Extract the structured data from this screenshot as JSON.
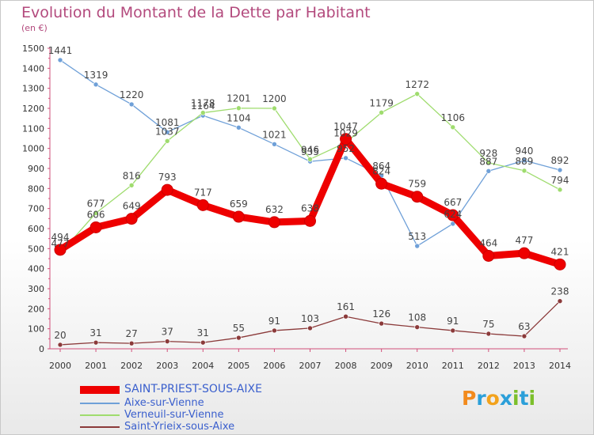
{
  "title": "Evolution du Montant de la Dette par Habitant",
  "unit": "(en €)",
  "logo": {
    "text": "Proxiti",
    "letters": [
      "P",
      "r",
      "o",
      "x",
      "i",
      "t",
      "i"
    ],
    "colors": [
      "#f28a1c",
      "#2b9fd9",
      "#f2a21c",
      "#2b9fd9",
      "#7cbf2b",
      "#2b9fd9",
      "#7cbf2b"
    ]
  },
  "chart_data": {
    "type": "line",
    "x": [
      "2000",
      "2001",
      "2002",
      "2003",
      "2004",
      "2005",
      "2006",
      "2007",
      "2008",
      "2009",
      "2010",
      "2011",
      "2012",
      "2013",
      "2014"
    ],
    "yticks": [
      "0",
      "100",
      "200",
      "300",
      "400",
      "500",
      "600",
      "700",
      "800",
      "900",
      "1000",
      "1100",
      "1200",
      "1300",
      "1400",
      "1500"
    ],
    "ylim": [
      0,
      1500
    ],
    "grid": false,
    "legend_position": "bottom-left",
    "series": [
      {
        "name": "SAINT-PRIEST-SOUS-AIXE",
        "color": "#ee0000",
        "emphasis": true,
        "values": [
          494,
          606,
          649,
          793,
          717,
          659,
          632,
          638,
          1047,
          824,
          759,
          667,
          464,
          477,
          421
        ],
        "labels": [
          "494",
          "606",
          "649",
          "793",
          "717",
          "659",
          "632",
          "638",
          "1047",
          "824",
          "759",
          "667",
          "464",
          "477",
          "421"
        ]
      },
      {
        "name": "Aixe-sur-Vienne",
        "color": "#6fa0d8",
        "emphasis": false,
        "values": [
          1441,
          1319,
          1220,
          1081,
          1164,
          1104,
          1021,
          935,
          952,
          864,
          513,
          624,
          887,
          940,
          892
        ],
        "labels": [
          "1441",
          "1319",
          "1220",
          "1081",
          "1164",
          "1104",
          "1021",
          "935",
          "952",
          "864",
          "513",
          "624",
          "887",
          "940",
          "892"
        ]
      },
      {
        "name": "Verneuil-sur-Vienne",
        "color": "#9fdc6e",
        "emphasis": false,
        "values": [
          477,
          677,
          816,
          1037,
          1178,
          1201,
          1200,
          946,
          1029,
          1179,
          1272,
          1106,
          928,
          889,
          794
        ],
        "labels": [
          "477",
          "677",
          "816",
          "1037",
          "1178",
          "1201",
          "1200",
          "946",
          "1029",
          "1179",
          "1272",
          "1106",
          "928",
          "889",
          "794"
        ]
      },
      {
        "name": "Saint-Yrieix-sous-Aixe",
        "color": "#8b3a3a",
        "emphasis": false,
        "values": [
          20,
          31,
          27,
          37,
          31,
          55,
          91,
          103,
          161,
          126,
          108,
          91,
          75,
          63,
          238
        ],
        "labels": [
          "20",
          "31",
          "27",
          "37",
          "31",
          "55",
          "91",
          "103",
          "161",
          "126",
          "108",
          "91",
          "75",
          "63",
          "238"
        ]
      }
    ]
  }
}
